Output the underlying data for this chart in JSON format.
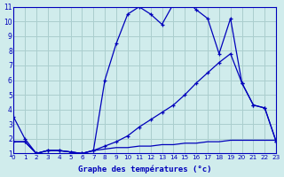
{
  "title": "Graphe des températures (°c)",
  "background_color": "#d0ecec",
  "grid_color": "#aacece",
  "line_color": "#0000bb",
  "x_ticks": [
    0,
    1,
    2,
    3,
    4,
    5,
    6,
    7,
    8,
    9,
    10,
    11,
    12,
    13,
    14,
    15,
    16,
    17,
    18,
    19,
    20,
    21,
    22,
    23
  ],
  "y_ticks": [
    1,
    2,
    3,
    4,
    5,
    6,
    7,
    8,
    9,
    10,
    11
  ],
  "xlim": [
    0,
    23
  ],
  "ylim": [
    1,
    11
  ],
  "series1_x": [
    0,
    1,
    2,
    3,
    4,
    5,
    6,
    7,
    8,
    9,
    10,
    11,
    12,
    13,
    14,
    15,
    16,
    17,
    18,
    19,
    20,
    21,
    22,
    23
  ],
  "series1_y": [
    3.5,
    2.0,
    1.0,
    1.2,
    1.2,
    1.1,
    1.0,
    1.2,
    6.0,
    8.5,
    10.5,
    11.0,
    10.5,
    9.8,
    11.2,
    11.5,
    10.8,
    10.2,
    7.8,
    10.2,
    5.8,
    4.3,
    4.1,
    1.8
  ],
  "series2_x": [
    0,
    1,
    2,
    3,
    4,
    5,
    6,
    7,
    8,
    9,
    10,
    11,
    12,
    13,
    14,
    15,
    16,
    17,
    18,
    19,
    20,
    21,
    22,
    23
  ],
  "series2_y": [
    1.8,
    1.8,
    1.0,
    1.2,
    1.2,
    1.1,
    1.0,
    1.2,
    1.5,
    1.8,
    2.2,
    2.8,
    3.3,
    3.8,
    4.3,
    5.0,
    5.8,
    6.5,
    7.2,
    7.8,
    5.8,
    4.3,
    4.1,
    1.8
  ],
  "series3_x": [
    0,
    1,
    2,
    3,
    4,
    5,
    6,
    7,
    8,
    9,
    10,
    11,
    12,
    13,
    14,
    15,
    16,
    17,
    18,
    19,
    20,
    21,
    22,
    23
  ],
  "series3_y": [
    1.8,
    1.8,
    1.0,
    1.2,
    1.2,
    1.1,
    1.0,
    1.2,
    1.3,
    1.4,
    1.4,
    1.5,
    1.5,
    1.6,
    1.6,
    1.7,
    1.7,
    1.8,
    1.8,
    1.9,
    1.9,
    1.9,
    1.9,
    1.9
  ]
}
